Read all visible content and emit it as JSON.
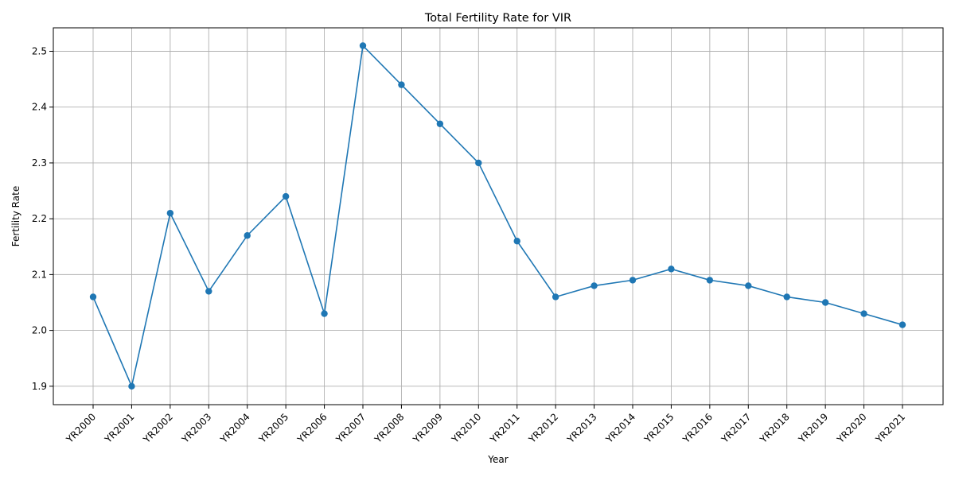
{
  "chart_data": {
    "type": "line",
    "title": "Total Fertility Rate for VIR",
    "xlabel": "Year",
    "ylabel": "Fertility Rate",
    "categories": [
      "YR2000",
      "YR2001",
      "YR2002",
      "YR2003",
      "YR2004",
      "YR2005",
      "YR2006",
      "YR2007",
      "YR2008",
      "YR2009",
      "YR2010",
      "YR2011",
      "YR2012",
      "YR2013",
      "YR2014",
      "YR2015",
      "YR2016",
      "YR2017",
      "YR2018",
      "YR2019",
      "YR2020",
      "YR2021"
    ],
    "series": [
      {
        "values": [
          2.06,
          1.9,
          2.21,
          2.07,
          2.17,
          2.24,
          2.03,
          2.51,
          2.44,
          2.37,
          2.3,
          2.16,
          2.06,
          2.08,
          2.09,
          2.11,
          2.09,
          2.08,
          2.06,
          2.05,
          2.03,
          2.01
        ],
        "color": "#1f77b4",
        "marker": "circle"
      }
    ],
    "ylim": [
      1.867,
      2.542
    ],
    "yticks": [
      "1.9",
      "2.0",
      "2.1",
      "2.2",
      "2.3",
      "2.4",
      "2.5"
    ],
    "grid": true,
    "legend": "none"
  }
}
